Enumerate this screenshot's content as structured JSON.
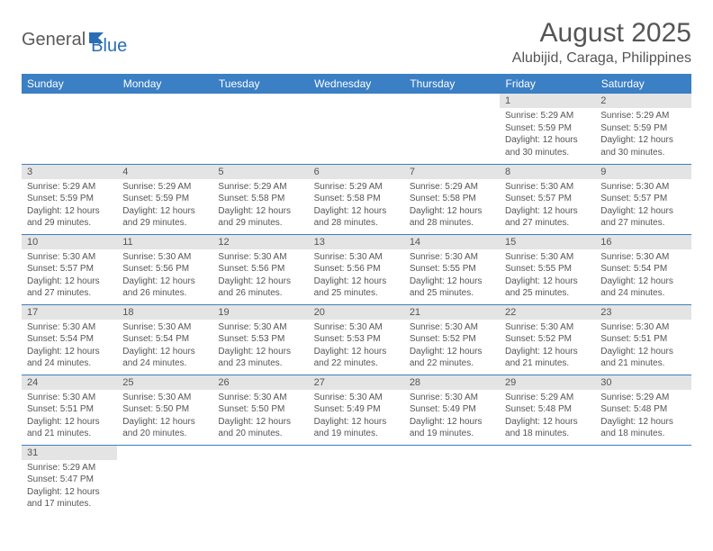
{
  "logo": {
    "text1": "General",
    "text2": "Blue"
  },
  "header": {
    "month": "August 2025",
    "location": "Alubijid, Caraga, Philippines"
  },
  "colors": {
    "header_bg": "#3b7fc4",
    "header_text": "#ffffff",
    "daynum_bg": "#e4e4e4",
    "text": "#555555",
    "divider": "#3b7fc4"
  },
  "weekdays": [
    "Sunday",
    "Monday",
    "Tuesday",
    "Wednesday",
    "Thursday",
    "Friday",
    "Saturday"
  ],
  "weeks": [
    [
      null,
      null,
      null,
      null,
      null,
      {
        "n": "1",
        "sr": "5:29 AM",
        "ss": "5:59 PM",
        "dh": "12",
        "dm": "30"
      },
      {
        "n": "2",
        "sr": "5:29 AM",
        "ss": "5:59 PM",
        "dh": "12",
        "dm": "30"
      }
    ],
    [
      {
        "n": "3",
        "sr": "5:29 AM",
        "ss": "5:59 PM",
        "dh": "12",
        "dm": "29"
      },
      {
        "n": "4",
        "sr": "5:29 AM",
        "ss": "5:59 PM",
        "dh": "12",
        "dm": "29"
      },
      {
        "n": "5",
        "sr": "5:29 AM",
        "ss": "5:58 PM",
        "dh": "12",
        "dm": "29"
      },
      {
        "n": "6",
        "sr": "5:29 AM",
        "ss": "5:58 PM",
        "dh": "12",
        "dm": "28"
      },
      {
        "n": "7",
        "sr": "5:29 AM",
        "ss": "5:58 PM",
        "dh": "12",
        "dm": "28"
      },
      {
        "n": "8",
        "sr": "5:30 AM",
        "ss": "5:57 PM",
        "dh": "12",
        "dm": "27"
      },
      {
        "n": "9",
        "sr": "5:30 AM",
        "ss": "5:57 PM",
        "dh": "12",
        "dm": "27"
      }
    ],
    [
      {
        "n": "10",
        "sr": "5:30 AM",
        "ss": "5:57 PM",
        "dh": "12",
        "dm": "27"
      },
      {
        "n": "11",
        "sr": "5:30 AM",
        "ss": "5:56 PM",
        "dh": "12",
        "dm": "26"
      },
      {
        "n": "12",
        "sr": "5:30 AM",
        "ss": "5:56 PM",
        "dh": "12",
        "dm": "26"
      },
      {
        "n": "13",
        "sr": "5:30 AM",
        "ss": "5:56 PM",
        "dh": "12",
        "dm": "25"
      },
      {
        "n": "14",
        "sr": "5:30 AM",
        "ss": "5:55 PM",
        "dh": "12",
        "dm": "25"
      },
      {
        "n": "15",
        "sr": "5:30 AM",
        "ss": "5:55 PM",
        "dh": "12",
        "dm": "25"
      },
      {
        "n": "16",
        "sr": "5:30 AM",
        "ss": "5:54 PM",
        "dh": "12",
        "dm": "24"
      }
    ],
    [
      {
        "n": "17",
        "sr": "5:30 AM",
        "ss": "5:54 PM",
        "dh": "12",
        "dm": "24"
      },
      {
        "n": "18",
        "sr": "5:30 AM",
        "ss": "5:54 PM",
        "dh": "12",
        "dm": "24"
      },
      {
        "n": "19",
        "sr": "5:30 AM",
        "ss": "5:53 PM",
        "dh": "12",
        "dm": "23"
      },
      {
        "n": "20",
        "sr": "5:30 AM",
        "ss": "5:53 PM",
        "dh": "12",
        "dm": "22"
      },
      {
        "n": "21",
        "sr": "5:30 AM",
        "ss": "5:52 PM",
        "dh": "12",
        "dm": "22"
      },
      {
        "n": "22",
        "sr": "5:30 AM",
        "ss": "5:52 PM",
        "dh": "12",
        "dm": "21"
      },
      {
        "n": "23",
        "sr": "5:30 AM",
        "ss": "5:51 PM",
        "dh": "12",
        "dm": "21"
      }
    ],
    [
      {
        "n": "24",
        "sr": "5:30 AM",
        "ss": "5:51 PM",
        "dh": "12",
        "dm": "21"
      },
      {
        "n": "25",
        "sr": "5:30 AM",
        "ss": "5:50 PM",
        "dh": "12",
        "dm": "20"
      },
      {
        "n": "26",
        "sr": "5:30 AM",
        "ss": "5:50 PM",
        "dh": "12",
        "dm": "20"
      },
      {
        "n": "27",
        "sr": "5:30 AM",
        "ss": "5:49 PM",
        "dh": "12",
        "dm": "19"
      },
      {
        "n": "28",
        "sr": "5:30 AM",
        "ss": "5:49 PM",
        "dh": "12",
        "dm": "19"
      },
      {
        "n": "29",
        "sr": "5:29 AM",
        "ss": "5:48 PM",
        "dh": "12",
        "dm": "18"
      },
      {
        "n": "30",
        "sr": "5:29 AM",
        "ss": "5:48 PM",
        "dh": "12",
        "dm": "18"
      }
    ],
    [
      {
        "n": "31",
        "sr": "5:29 AM",
        "ss": "5:47 PM",
        "dh": "12",
        "dm": "17"
      },
      null,
      null,
      null,
      null,
      null,
      null
    ]
  ],
  "labels": {
    "sunrise": "Sunrise:",
    "sunset": "Sunset:",
    "daylight": "Daylight:",
    "hours": "hours",
    "and": "and",
    "minutes": "minutes."
  }
}
